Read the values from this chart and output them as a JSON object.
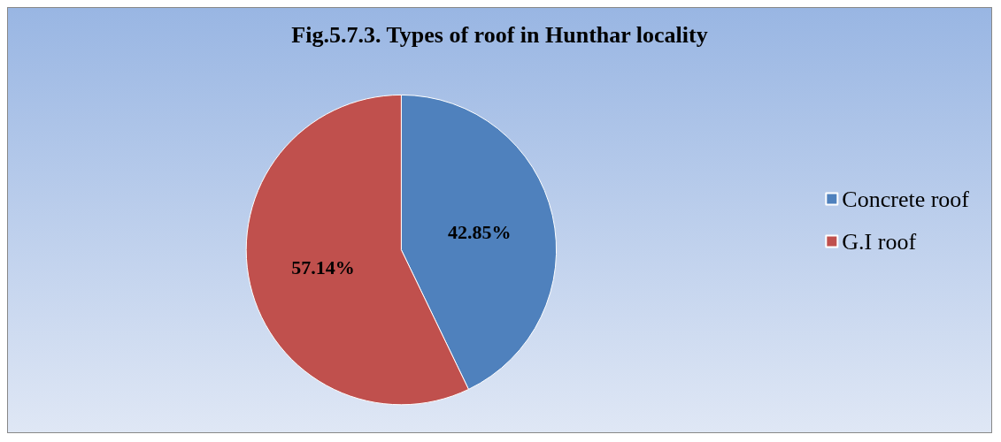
{
  "chart_data": {
    "type": "pie",
    "title": "Fig.5.7.3. Types of roof in Hunthar locality",
    "categories": [
      "Concrete roof",
      "G.I roof"
    ],
    "values": [
      42.85,
      57.14
    ],
    "colors": [
      "#4f81bd",
      "#c0504d"
    ],
    "value_labels": [
      "42.85%",
      "57.14%"
    ],
    "legend": "right"
  }
}
